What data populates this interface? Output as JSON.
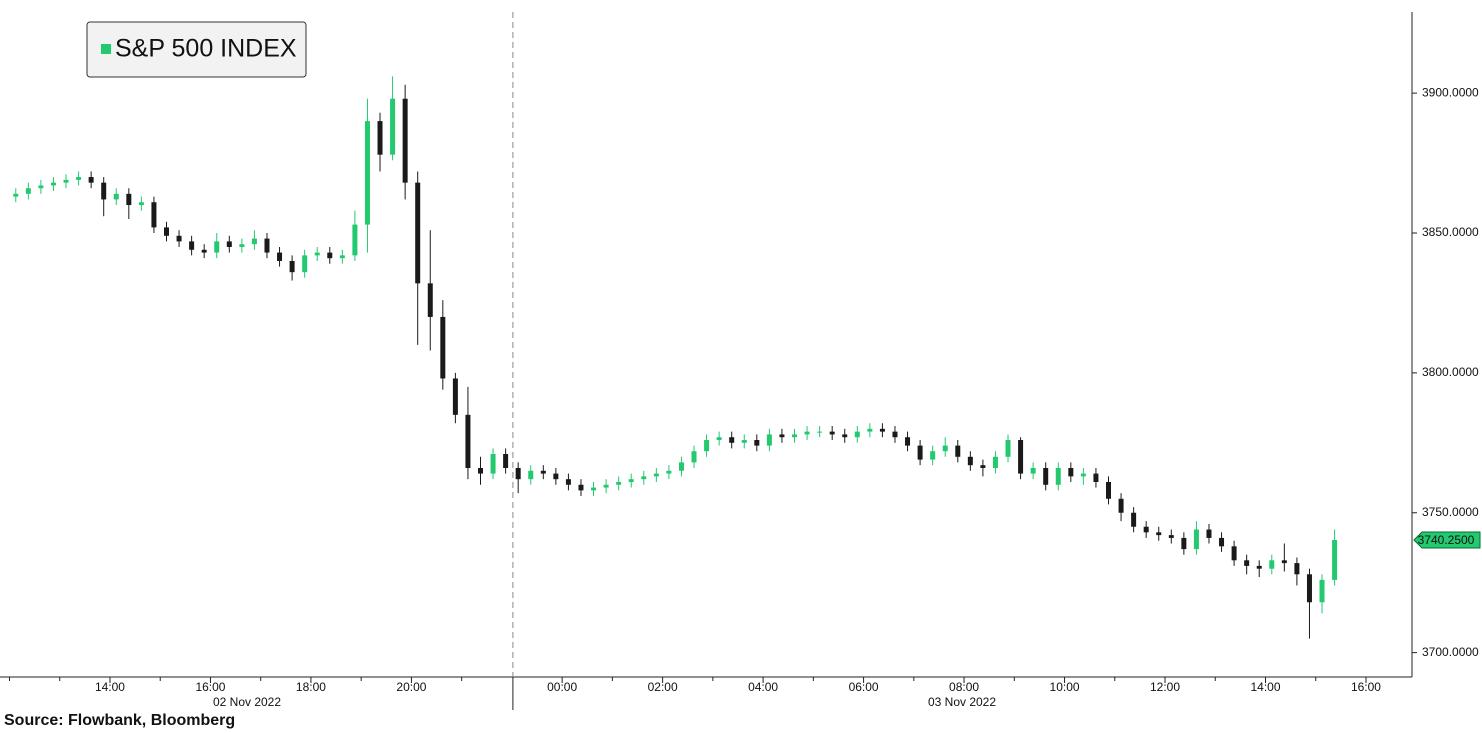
{
  "chart_data": {
    "type": "candlestick",
    "source": "Source: Flowbank, Bloomberg",
    "date_labels": [
      "02 Nov 2022",
      "03 Nov 2022"
    ],
    "categories": [
      null,
      null,
      null,
      null,
      null,
      null,
      null,
      null,
      "14:00",
      null,
      null,
      null,
      null,
      null,
      null,
      null,
      "16:00",
      null,
      null,
      null,
      null,
      null,
      null,
      null,
      "18:00",
      null,
      null,
      null,
      null,
      null,
      null,
      null,
      "20:00",
      null,
      null,
      null,
      null,
      null,
      null,
      null,
      null,
      null,
      null,
      null,
      "00:00",
      null,
      null,
      null,
      null,
      null,
      null,
      null,
      "02:00",
      null,
      null,
      null,
      null,
      null,
      null,
      null,
      "04:00",
      null,
      null,
      null,
      null,
      null,
      null,
      null,
      "06:00",
      null,
      null,
      null,
      null,
      null,
      null,
      null,
      "08:00",
      null,
      null,
      null,
      null,
      null,
      null,
      null,
      "10:00",
      null,
      null,
      null,
      null,
      null,
      null,
      null,
      "12:00",
      null,
      null,
      null,
      null,
      null,
      null,
      null,
      "14:00",
      null,
      null,
      null,
      null,
      null,
      null,
      null,
      "16:00"
    ],
    "series": [
      {
        "name": "S&P 500 INDEX",
        "up_color": "#22c96f",
        "down_color": "#1a1a1a",
        "open": [
          3863,
          3864,
          3866,
          3867,
          3868,
          3869,
          3870,
          3868,
          3862,
          3864,
          3860,
          3861,
          3852,
          3849,
          3847,
          3844,
          3843,
          3847,
          3845,
          3846,
          3848,
          3843,
          3840,
          3836,
          3842,
          3843,
          3841,
          3842,
          3853,
          3890,
          3878,
          3898,
          3868,
          3832,
          3820,
          3798,
          3785,
          3766,
          3764,
          3771,
          3766,
          3762,
          3765,
          3764,
          3762,
          3760,
          3758,
          3759,
          3760,
          3761,
          3762,
          3763,
          3764,
          3765,
          3768,
          3772,
          3776,
          3777,
          3775,
          3776,
          3774,
          3778,
          3777,
          3778,
          3779,
          3779,
          3778,
          3777,
          3779,
          3780,
          3779,
          3777,
          3774,
          3769,
          3772,
          3774,
          3770,
          3767,
          3766,
          3770,
          3776,
          3764,
          3766,
          3760,
          3766,
          3763,
          3764,
          3761,
          3755,
          3750,
          3745,
          3743,
          3742,
          3741,
          3737,
          3744,
          3741,
          3738,
          3733,
          3731,
          3730,
          3733,
          3732,
          3728,
          3718,
          3726,
          null,
          null,
          null
        ],
        "high": [
          3866,
          3868,
          3869,
          3870,
          3871,
          3872,
          3872,
          3870,
          3866,
          3866,
          3863,
          3863,
          3854,
          3851,
          3849,
          3846,
          3850,
          3849,
          3848,
          3851,
          3850,
          3845,
          3842,
          3844,
          3845,
          3845,
          3844,
          3858,
          3898,
          3893,
          3906,
          3903,
          3872,
          3851,
          3826,
          3800,
          3795,
          3770,
          3773,
          3773,
          3768,
          3767,
          3767,
          3766,
          3764,
          3762,
          3761,
          3762,
          3763,
          3764,
          3765,
          3766,
          3767,
          3770,
          3774,
          3778,
          3779,
          3779,
          3778,
          3778,
          3780,
          3780,
          3780,
          3781,
          3781,
          3781,
          3780,
          3781,
          3782,
          3782,
          3781,
          3779,
          3776,
          3774,
          3777,
          3776,
          3772,
          3769,
          3772,
          3778,
          3777,
          3768,
          3768,
          3768,
          3768,
          3766,
          3766,
          3763,
          3757,
          3752,
          3747,
          3745,
          3744,
          3743,
          3747,
          3746,
          3743,
          3740,
          3735,
          3733,
          3735,
          3739,
          3734,
          3730,
          3728,
          3744,
          null,
          null,
          null
        ],
        "low": [
          3861,
          3862,
          3864,
          3865,
          3866,
          3867,
          3866,
          3856,
          3860,
          3855,
          3858,
          3850,
          3847,
          3845,
          3842,
          3841,
          3841,
          3843,
          3843,
          3844,
          3841,
          3838,
          3833,
          3834,
          3840,
          3839,
          3839,
          3840,
          3843,
          3872,
          3876,
          3862,
          3810,
          3808,
          3794,
          3782,
          3762,
          3760,
          3762,
          3764,
          3757,
          3760,
          3762,
          3760,
          3758,
          3756,
          3756,
          3757,
          3758,
          3759,
          3760,
          3761,
          3762,
          3763,
          3766,
          3770,
          3774,
          3773,
          3773,
          3772,
          3772,
          3775,
          3775,
          3776,
          3777,
          3776,
          3775,
          3775,
          3777,
          3777,
          3775,
          3772,
          3767,
          3767,
          3770,
          3768,
          3765,
          3763,
          3764,
          3768,
          3762,
          3762,
          3758,
          3758,
          3761,
          3760,
          3759,
          3753,
          3747,
          3743,
          3741,
          3740,
          3739,
          3735,
          3735,
          3739,
          3736,
          3731,
          3728,
          3727,
          3728,
          3729,
          3724,
          3705,
          3714,
          3724,
          null,
          null,
          null
        ],
        "close": [
          3864,
          3866,
          3867,
          3868,
          3869,
          3870,
          3868,
          3862,
          3864,
          3860,
          3861,
          3852,
          3849,
          3847,
          3844,
          3843,
          3847,
          3845,
          3846,
          3848,
          3843,
          3840,
          3836,
          3842,
          3843,
          3841,
          3842,
          3853,
          3890,
          3878,
          3898,
          3868,
          3832,
          3820,
          3798,
          3785,
          3766,
          3764,
          3771,
          3766,
          3762,
          3765,
          3764,
          3762,
          3760,
          3758,
          3759,
          3760,
          3761,
          3762,
          3763,
          3764,
          3765,
          3768,
          3772,
          3776,
          3777,
          3775,
          3776,
          3774,
          3778,
          3777,
          3778,
          3779,
          3779,
          3778,
          3777,
          3779,
          3780,
          3779,
          3777,
          3774,
          3769,
          3772,
          3774,
          3770,
          3767,
          3766,
          3770,
          3776,
          3764,
          3766,
          3760,
          3766,
          3763,
          3764,
          3761,
          3755,
          3750,
          3745,
          3743,
          3742,
          3741,
          3737,
          3744,
          3741,
          3738,
          3733,
          3731,
          3730,
          3733,
          3732,
          3728,
          3718,
          3726,
          3740.25,
          null,
          null,
          null
        ]
      }
    ],
    "last_price": {
      "value": 3740.25,
      "label": "3740.2500"
    },
    "ylim": [
      3692,
      3929
    ],
    "yticks": [
      {
        "value": 3700,
        "label": "3700.0000"
      },
      {
        "value": 3750,
        "label": "3750.0000"
      },
      {
        "value": 3800,
        "label": "3800.0000"
      },
      {
        "value": 3850,
        "label": "3850.0000"
      },
      {
        "value": 3900,
        "label": "3900.0000"
      }
    ],
    "legend": "top-left"
  }
}
